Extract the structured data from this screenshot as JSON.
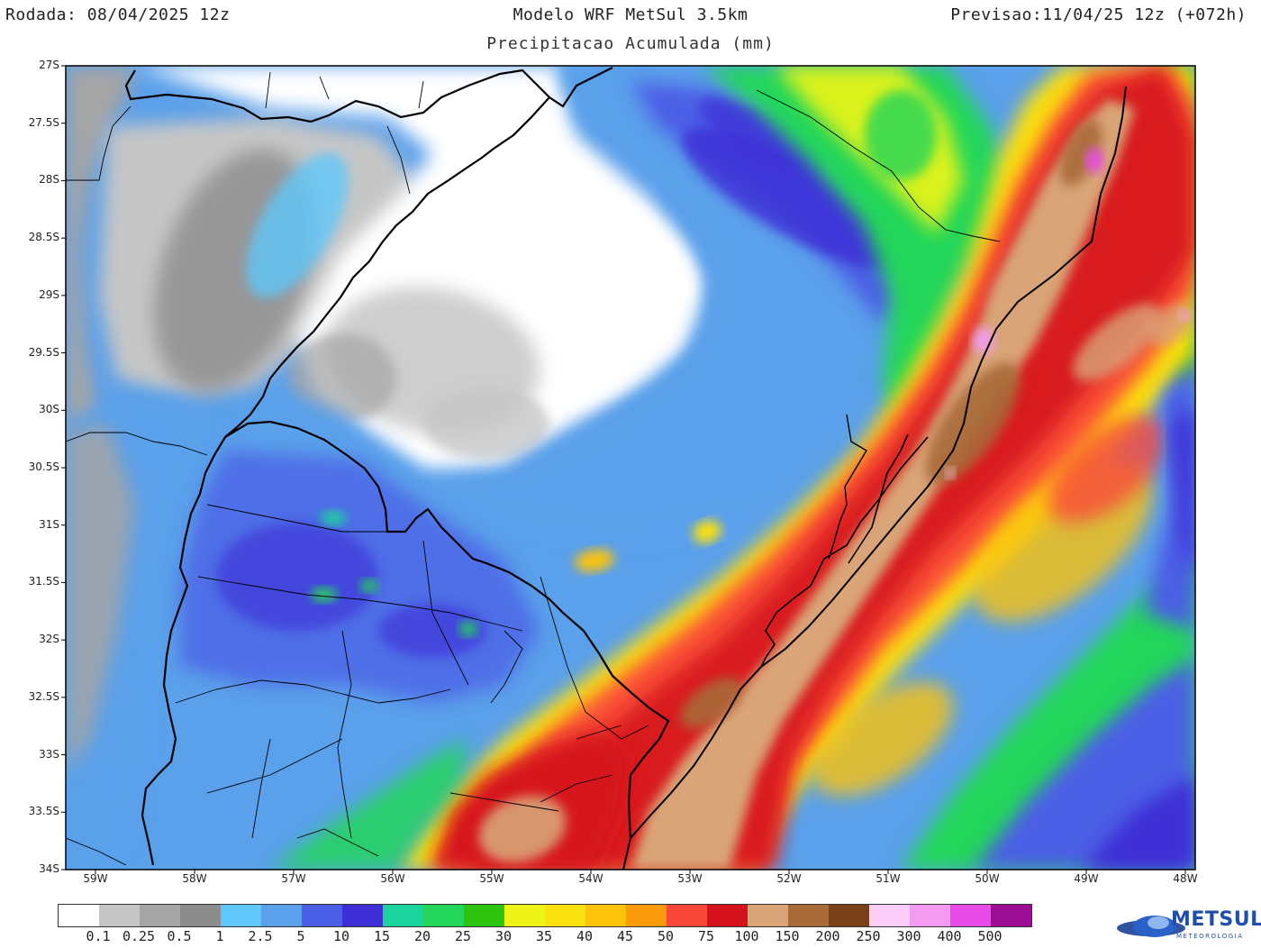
{
  "header": {
    "run": "Rodada: 08/04/2025 12z",
    "model": "Modelo WRF MetSul 3.5km",
    "valid": "Previsao:11/04/25 12z (+072h)",
    "subtitle": "Precipitacao Acumulada (mm)"
  },
  "map": {
    "variable": "accumulated precipitation",
    "lat_range": [
      -34,
      -27
    ],
    "lon_range": [
      -59.3,
      -47.9
    ],
    "lat_ticks": [
      "27S",
      "27.5S",
      "28S",
      "28.5S",
      "29S",
      "29.5S",
      "30S",
      "30.5S",
      "31S",
      "31.5S",
      "32S",
      "32.5S",
      "33S",
      "33.5S",
      "34S"
    ],
    "lon_ticks": [
      "59W",
      "58W",
      "57W",
      "56W",
      "55W",
      "54W",
      "53W",
      "52W",
      "51W",
      "50W",
      "49W",
      "48W"
    ],
    "boundary_color": "#000000"
  },
  "legend": {
    "labels": [
      "0.1",
      "0.25",
      "0.5",
      "1",
      "2.5",
      "5",
      "10",
      "15",
      "20",
      "25",
      "30",
      "35",
      "40",
      "45",
      "50",
      "75",
      "100",
      "150",
      "200",
      "250",
      "300",
      "400",
      "500"
    ],
    "colors": [
      "#ffffff",
      "#c6c6c6",
      "#a5a5a5",
      "#8c8c8c",
      "#5fc7fb",
      "#5aa0ea",
      "#4b5fe6",
      "#3d2ed6",
      "#1ad49c",
      "#23d65a",
      "#2fc20f",
      "#eef516",
      "#fbe00f",
      "#fbc30a",
      "#fb9a0a",
      "#f9483a",
      "#d6121c",
      "#d9a477",
      "#a86b37",
      "#7a4018",
      "#fccdf7",
      "#f39bf1",
      "#e74ce6",
      "#9b0d95"
    ]
  },
  "logo": {
    "name": "METSUL",
    "tagline": "METEOROLOGIA"
  }
}
